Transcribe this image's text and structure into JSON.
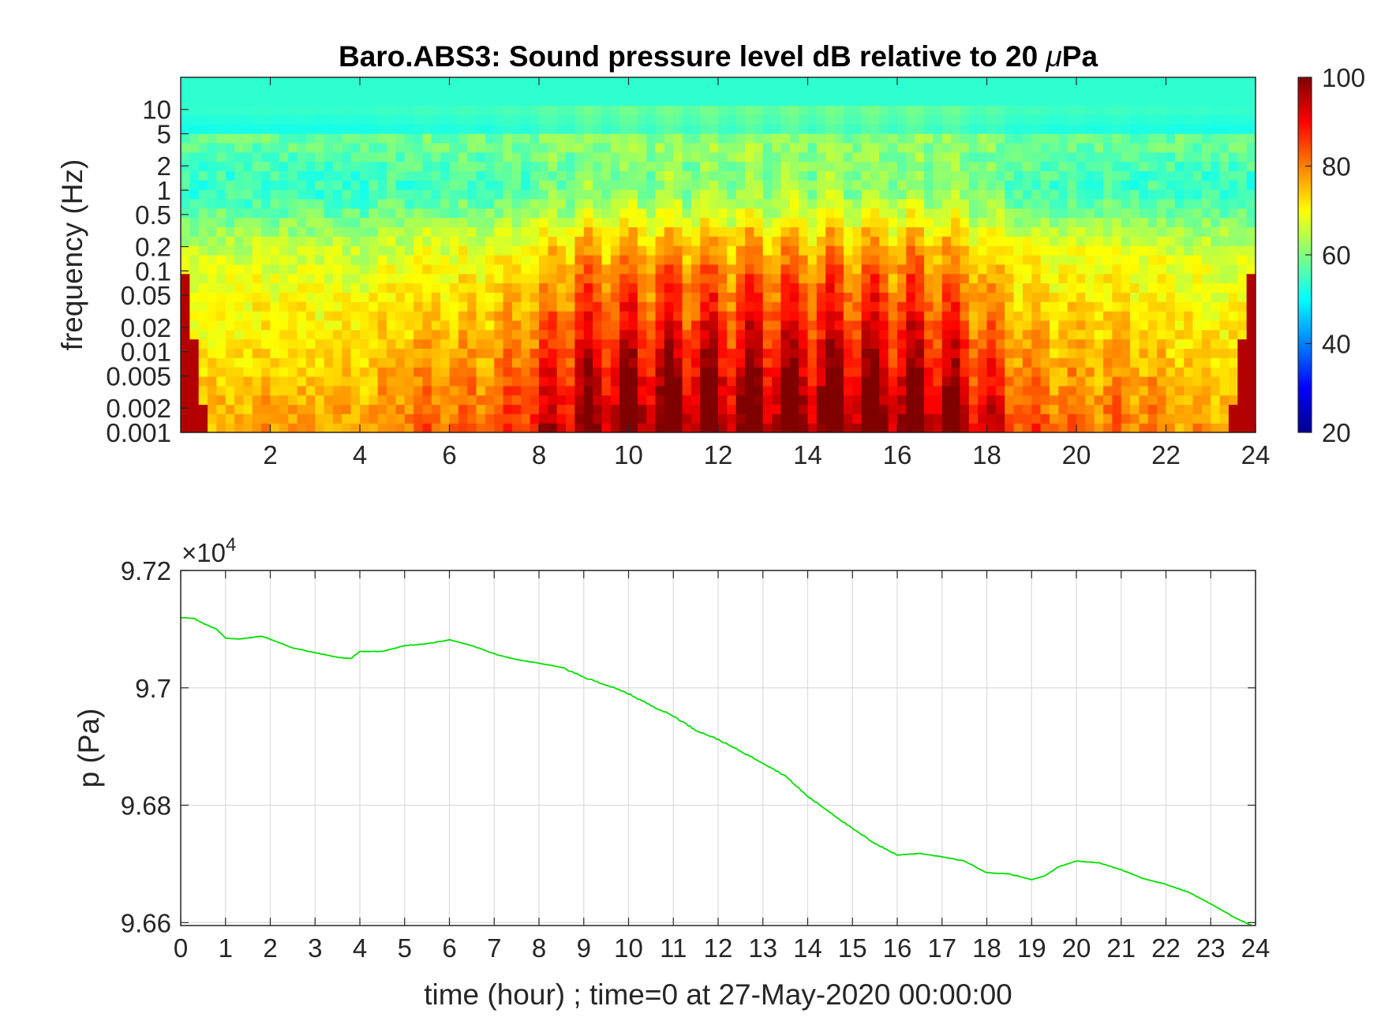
{
  "figure": {
    "title_prefix": "Baro.ABS3: Sound pressure level dB relative to 20 ",
    "title_mu": "μ",
    "title_suffix": "Pa"
  },
  "chart_data": [
    {
      "type": "heatmap",
      "title": "Baro.ABS3: Sound pressure level dB relative to 20 μPa",
      "xlabel": "",
      "ylabel": "frequency (Hz)",
      "xlim": [
        0,
        24
      ],
      "x_ticks": [
        2,
        4,
        6,
        8,
        10,
        12,
        14,
        16,
        18,
        20,
        22,
        24
      ],
      "y_scale": "log",
      "ylim": [
        0.001,
        25
      ],
      "y_ticks": [
        0.001,
        0.002,
        0.005,
        0.01,
        0.02,
        0.05,
        0.1,
        0.2,
        0.5,
        1,
        2,
        5,
        10
      ],
      "y_tick_labels": [
        "0.001",
        "0.002",
        "0.005",
        "0.01",
        "0.02",
        "0.05",
        "0.1",
        "0.2",
        "0.5",
        "1",
        "2",
        "5",
        "10"
      ],
      "colorbar": {
        "min": 20,
        "max": 100,
        "ticks": [
          20,
          40,
          60,
          80,
          100
        ],
        "colormap": "jet",
        "position": "right"
      },
      "description_levels": {
        "time_hours": [
          0,
          1,
          2,
          3,
          4,
          5,
          6,
          7,
          8,
          9,
          10,
          11,
          12,
          13,
          14,
          15,
          16,
          17,
          18,
          19,
          20,
          21,
          22,
          23,
          24
        ],
        "activity": [
          0.05,
          0.08,
          0.12,
          0.1,
          0.1,
          0.25,
          0.28,
          0.3,
          0.55,
          0.85,
          0.9,
          0.95,
          0.9,
          0.92,
          0.95,
          0.97,
          0.93,
          0.9,
          0.6,
          0.3,
          0.25,
          0.25,
          0.18,
          0.12,
          0.08
        ]
      }
    },
    {
      "type": "line",
      "title": "",
      "xlabel": "time (hour) ; time=0 at 27-May-2020 00:00:00",
      "ylabel": "p (Pa)",
      "xlim": [
        0,
        24
      ],
      "ylim": [
        96595,
        97200
      ],
      "x_ticks": [
        0,
        1,
        2,
        3,
        4,
        5,
        6,
        7,
        8,
        9,
        10,
        11,
        12,
        13,
        14,
        15,
        16,
        17,
        18,
        19,
        20,
        21,
        22,
        23,
        24
      ],
      "y_ticks": [
        96600,
        96800,
        97000,
        97200
      ],
      "y_tick_labels": [
        "9.66",
        "9.68",
        "9.7",
        "9.72"
      ],
      "y_exponent_prefix": "×10",
      "y_exponent": "4",
      "grid": true,
      "color": "#00e000",
      "series": [
        {
          "x": [
            0,
            0.3,
            0.5,
            0.8,
            1.0,
            1.3,
            1.5,
            1.8,
            2.0,
            2.5,
            3.0,
            3.5,
            3.8,
            4.0,
            4.5,
            5.0,
            5.5,
            6.0,
            6.5,
            7.0,
            7.5,
            8.0,
            8.5,
            9.0,
            9.5,
            10.0,
            10.5,
            11.0,
            11.5,
            12.0,
            12.5,
            13.0,
            13.5,
            14.0,
            14.5,
            15.0,
            15.5,
            16.0,
            16.5,
            17.0,
            17.5,
            18.0,
            18.5,
            19.0,
            19.3,
            19.6,
            20.0,
            20.5,
            21.0,
            21.5,
            22.0,
            22.5,
            23.0,
            23.5,
            24.0
          ],
          "y": [
            97120,
            97118,
            97110,
            97100,
            97085,
            97083,
            97085,
            97088,
            97083,
            97068,
            97060,
            97052,
            97050,
            97062,
            97062,
            97072,
            97075,
            97082,
            97072,
            97058,
            97048,
            97042,
            97035,
            97018,
            97005,
            96990,
            96970,
            96952,
            96928,
            96912,
            96892,
            96872,
            96850,
            96815,
            96788,
            96760,
            96735,
            96715,
            96718,
            96712,
            96705,
            96685,
            96683,
            96673,
            96680,
            96695,
            96705,
            96702,
            96690,
            96675,
            96665,
            96652,
            96632,
            96610,
            96592
          ]
        }
      ]
    }
  ]
}
